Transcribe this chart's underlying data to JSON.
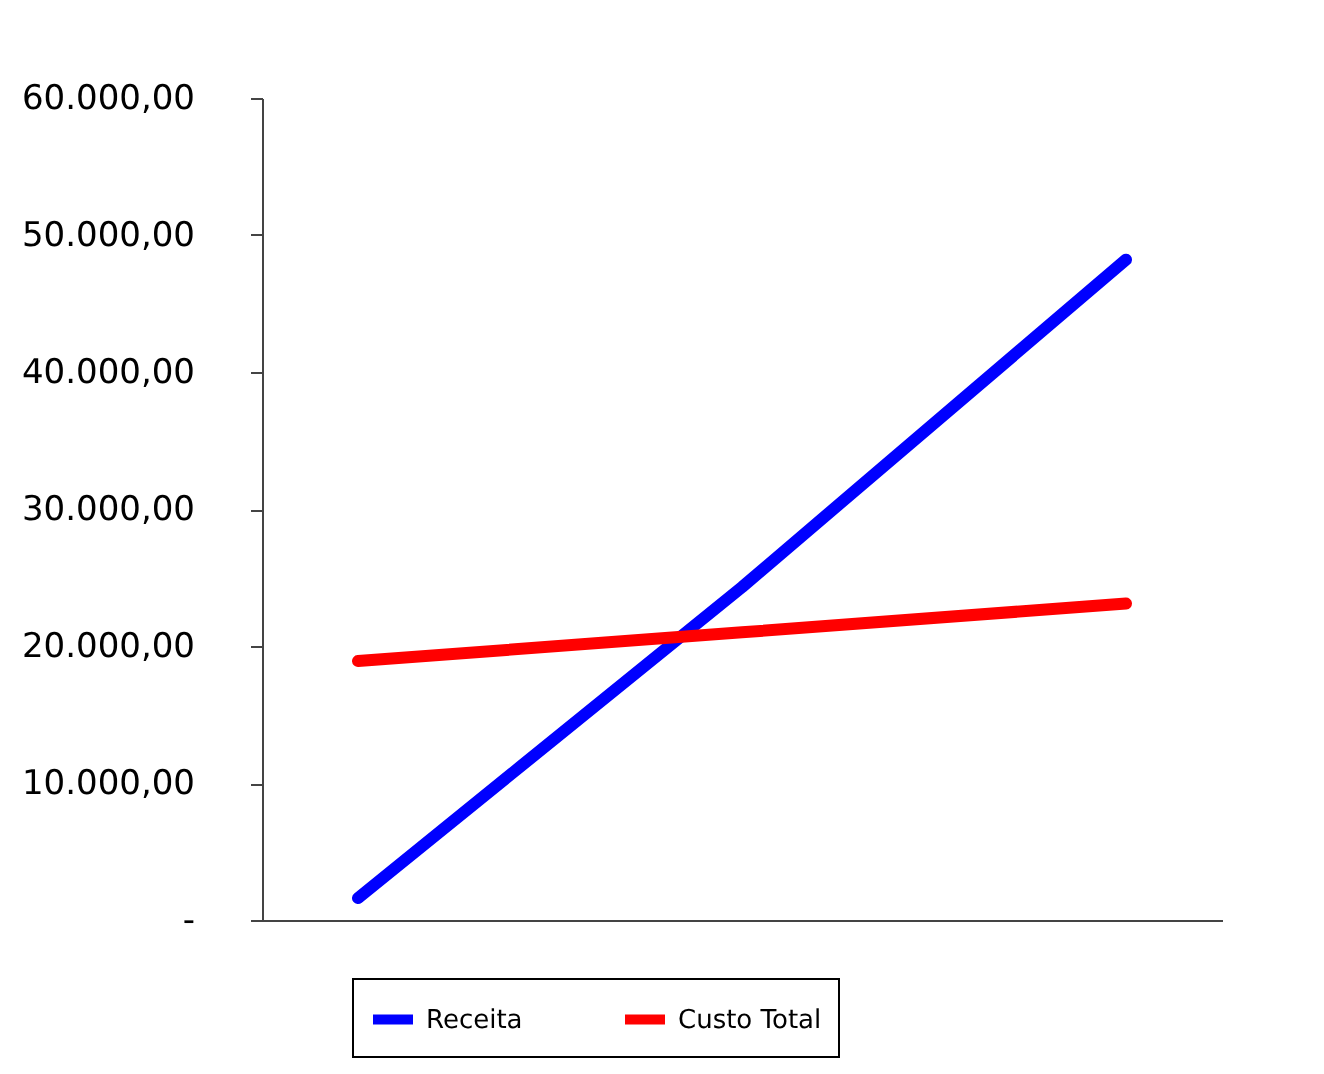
{
  "chart_data": {
    "type": "line",
    "categories": [
      null,
      null,
      null
    ],
    "series": [
      {
        "name": "Receita",
        "color": "#0000ff",
        "values": [
          1600,
          24300,
          48200
        ]
      },
      {
        "name": "Custo Total",
        "color": "#ff0000",
        "values": [
          18900,
          21000,
          23100
        ]
      }
    ],
    "ylim": [
      0,
      60000
    ],
    "yticks": [
      {
        "value": 0,
        "label": "-"
      },
      {
        "value": 10000,
        "label": "10.000,00"
      },
      {
        "value": 20000,
        "label": "20.000,00"
      },
      {
        "value": 30000,
        "label": "30.000,00"
      },
      {
        "value": 40000,
        "label": "40.000,00"
      },
      {
        "value": 50000,
        "label": "50.000,00"
      },
      {
        "value": 60000,
        "label": "60.000,00"
      }
    ],
    "tick_labels": "y",
    "grid": false,
    "legend": "bottom",
    "marker": "none",
    "line_style": "solid"
  }
}
